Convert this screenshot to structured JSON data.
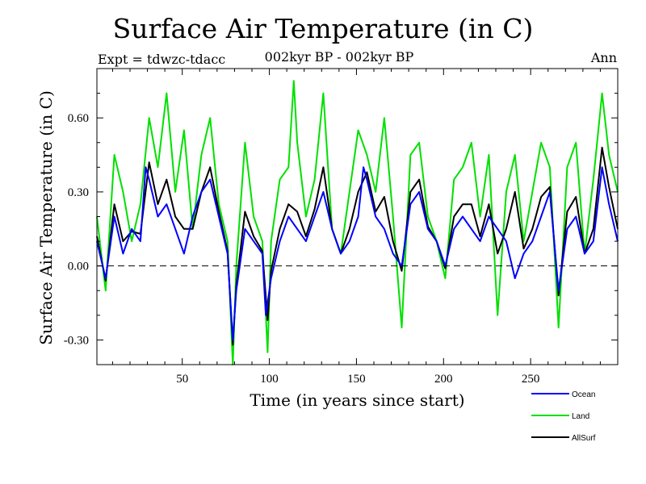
{
  "chart_data": {
    "type": "line",
    "title": "Surface Air Temperature (in C)",
    "expt_label": "Expt = tdwzc-tdacc",
    "subtitle": "002kyr BP - 002kyr BP",
    "period_label": "Ann",
    "xlabel": "Time (in years since start)",
    "ylabel": "Surface Air Temperature (in C)",
    "xlim": [
      1,
      300
    ],
    "ylim": [
      -0.4,
      0.8
    ],
    "xticks": [
      50,
      100,
      150,
      200,
      250
    ],
    "xtick_labels": [
      "50",
      "100",
      "150",
      "200",
      "250"
    ],
    "yticks": [
      -0.3,
      0.0,
      0.3,
      0.6
    ],
    "ytick_labels": [
      "-0.30",
      "0.00",
      "0.30",
      "0.60"
    ],
    "zero_line": "dashed",
    "legend_position": "bottom-right",
    "colors": {
      "Ocean": "#0000ff",
      "Land": "#00e000",
      "AllSurf": "#000000"
    },
    "series": [
      {
        "name": "Ocean",
        "x": [
          1,
          6,
          11,
          16,
          21,
          26,
          29,
          31,
          36,
          41,
          46,
          51,
          56,
          61,
          66,
          71,
          76,
          79,
          81,
          86,
          91,
          96,
          98,
          101,
          106,
          111,
          116,
          121,
          126,
          131,
          136,
          141,
          146,
          151,
          154,
          156,
          161,
          166,
          171,
          176,
          181,
          186,
          191,
          196,
          201,
          206,
          211,
          216,
          221,
          226,
          231,
          236,
          241,
          246,
          251,
          256,
          261,
          266,
          271,
          276,
          281,
          286,
          291,
          295,
          300
        ],
        "values": [
          0.1,
          -0.05,
          0.2,
          0.05,
          0.15,
          0.1,
          0.4,
          0.35,
          0.2,
          0.25,
          0.15,
          0.05,
          0.2,
          0.3,
          0.35,
          0.2,
          0.05,
          -0.3,
          -0.1,
          0.15,
          0.1,
          0.05,
          -0.2,
          -0.05,
          0.1,
          0.2,
          0.15,
          0.1,
          0.2,
          0.3,
          0.15,
          0.05,
          0.1,
          0.2,
          0.4,
          0.35,
          0.2,
          0.15,
          0.05,
          0.0,
          0.25,
          0.3,
          0.15,
          0.1,
          0.0,
          0.15,
          0.2,
          0.15,
          0.1,
          0.2,
          0.15,
          0.1,
          -0.05,
          0.05,
          0.1,
          0.2,
          0.3,
          -0.1,
          0.15,
          0.2,
          0.05,
          0.1,
          0.4,
          0.25,
          0.1
        ]
      },
      {
        "name": "Land",
        "x": [
          1,
          6,
          11,
          16,
          21,
          26,
          31,
          36,
          41,
          46,
          51,
          56,
          61,
          66,
          71,
          76,
          79,
          81,
          86,
          91,
          96,
          99,
          101,
          106,
          111,
          114,
          116,
          121,
          126,
          131,
          136,
          141,
          146,
          151,
          156,
          161,
          166,
          171,
          176,
          181,
          186,
          191,
          196,
          201,
          206,
          211,
          216,
          221,
          226,
          231,
          236,
          241,
          246,
          251,
          256,
          261,
          266,
          271,
          276,
          281,
          286,
          291,
          295,
          300
        ],
        "values": [
          0.2,
          -0.1,
          0.45,
          0.3,
          0.1,
          0.25,
          0.6,
          0.4,
          0.7,
          0.3,
          0.55,
          0.15,
          0.45,
          0.6,
          0.25,
          0.1,
          -0.4,
          0.0,
          0.5,
          0.2,
          0.1,
          -0.35,
          0.1,
          0.35,
          0.4,
          0.75,
          0.5,
          0.2,
          0.35,
          0.7,
          0.15,
          0.05,
          0.3,
          0.55,
          0.45,
          0.3,
          0.6,
          0.2,
          -0.25,
          0.45,
          0.5,
          0.2,
          0.1,
          -0.05,
          0.35,
          0.4,
          0.5,
          0.2,
          0.45,
          -0.2,
          0.3,
          0.45,
          0.1,
          0.3,
          0.5,
          0.4,
          -0.25,
          0.4,
          0.5,
          0.05,
          0.35,
          0.7,
          0.45,
          0.3
        ]
      },
      {
        "name": "AllSurf",
        "x": [
          1,
          6,
          11,
          16,
          21,
          26,
          31,
          36,
          41,
          46,
          51,
          56,
          61,
          66,
          71,
          76,
          79,
          81,
          86,
          91,
          96,
          99,
          101,
          106,
          111,
          116,
          121,
          126,
          131,
          136,
          141,
          146,
          151,
          156,
          161,
          166,
          171,
          176,
          181,
          186,
          191,
          196,
          201,
          206,
          211,
          216,
          221,
          226,
          231,
          236,
          241,
          246,
          251,
          256,
          261,
          266,
          271,
          276,
          281,
          286,
          291,
          295,
          300
        ],
        "values": [
          0.12,
          -0.06,
          0.25,
          0.1,
          0.14,
          0.13,
          0.42,
          0.25,
          0.35,
          0.2,
          0.15,
          0.15,
          0.3,
          0.4,
          0.22,
          0.06,
          -0.32,
          -0.08,
          0.22,
          0.12,
          0.06,
          -0.22,
          -0.02,
          0.15,
          0.25,
          0.22,
          0.12,
          0.23,
          0.4,
          0.15,
          0.05,
          0.15,
          0.3,
          0.38,
          0.22,
          0.28,
          0.1,
          -0.02,
          0.3,
          0.35,
          0.16,
          0.1,
          -0.01,
          0.2,
          0.25,
          0.25,
          0.12,
          0.25,
          0.05,
          0.15,
          0.3,
          0.07,
          0.15,
          0.28,
          0.32,
          -0.12,
          0.22,
          0.28,
          0.05,
          0.15,
          0.48,
          0.32,
          0.15
        ]
      }
    ]
  }
}
